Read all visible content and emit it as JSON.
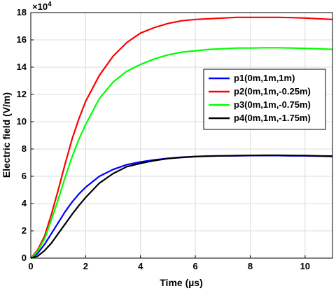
{
  "chart_data": {
    "type": "line",
    "title": "",
    "xlabel": "Time (µs)",
    "ylabel": "Electric field (V/m)",
    "y_exponent_base": "×10",
    "y_exponent_power": "4",
    "xlim": [
      0,
      11
    ],
    "ylim": [
      0,
      18
    ],
    "x_ticks": [
      0,
      2,
      4,
      6,
      8,
      10
    ],
    "y_ticks": [
      0,
      2,
      4,
      6,
      8,
      10,
      12,
      14,
      16,
      18
    ],
    "grid": true,
    "legend_position": "right-middle",
    "x": [
      0,
      0.25,
      0.5,
      0.75,
      1,
      1.25,
      1.5,
      1.75,
      2,
      2.5,
      3,
      3.5,
      4,
      4.5,
      5,
      5.5,
      6,
      6.5,
      7,
      7.5,
      8,
      8.5,
      9,
      9.5,
      10,
      10.5,
      11
    ],
    "series": [
      {
        "name": "p1(0m,1m,1m)",
        "color": "#0000ff",
        "values": [
          0,
          0.35,
          1.0,
          1.8,
          2.6,
          3.4,
          4.1,
          4.7,
          5.2,
          6.0,
          6.5,
          6.85,
          7.05,
          7.2,
          7.32,
          7.4,
          7.45,
          7.48,
          7.5,
          7.5,
          7.52,
          7.52,
          7.52,
          7.5,
          7.5,
          7.48,
          7.45
        ]
      },
      {
        "name": "p2(0m,1m,-0.25m)",
        "color": "#ff0000",
        "values": [
          0,
          0.6,
          1.6,
          3.2,
          5.0,
          6.9,
          8.7,
          10.2,
          11.5,
          13.4,
          14.8,
          15.8,
          16.5,
          16.9,
          17.2,
          17.4,
          17.5,
          17.55,
          17.6,
          17.65,
          17.65,
          17.65,
          17.65,
          17.63,
          17.6,
          17.55,
          17.5
        ]
      },
      {
        "name": "p3(0m,1m,-0.75m)",
        "color": "#00ff00",
        "values": [
          0,
          0.5,
          1.4,
          2.8,
          4.3,
          5.9,
          7.4,
          8.7,
          9.8,
          11.7,
          12.9,
          13.7,
          14.2,
          14.6,
          14.9,
          15.1,
          15.2,
          15.3,
          15.35,
          15.4,
          15.4,
          15.42,
          15.42,
          15.4,
          15.38,
          15.35,
          15.3
        ]
      },
      {
        "name": "p4(0m,1m,-1.75m)",
        "color": "#000000",
        "values": [
          0,
          0.15,
          0.55,
          1.1,
          1.8,
          2.5,
          3.2,
          3.85,
          4.45,
          5.5,
          6.2,
          6.7,
          6.95,
          7.15,
          7.3,
          7.38,
          7.44,
          7.48,
          7.5,
          7.52,
          7.53,
          7.54,
          7.54,
          7.53,
          7.52,
          7.5,
          7.48
        ]
      }
    ]
  }
}
